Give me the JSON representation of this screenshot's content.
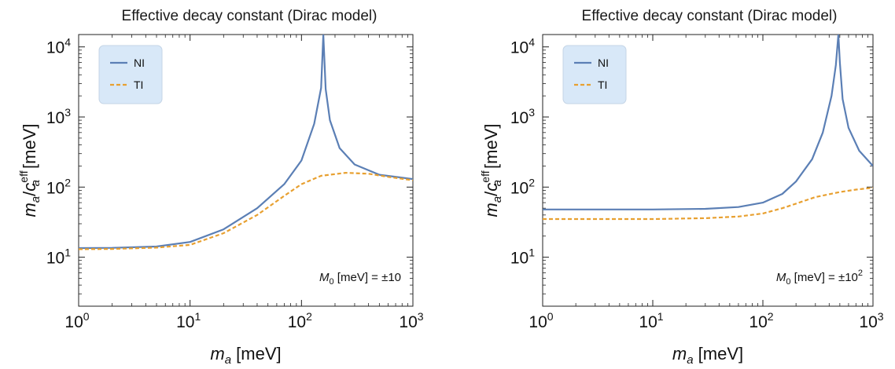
{
  "chart_data": [
    {
      "type": "line",
      "title": "Effective decay constant (Dirac model)",
      "xlabel": "m_a [meV]",
      "ylabel": "m_a/c_a^eff [meV]",
      "xscale": "log",
      "yscale": "log",
      "xlim": [
        1,
        1000
      ],
      "ylim": [
        2,
        15000
      ],
      "xticks": [
        1,
        10,
        100,
        1000
      ],
      "xtick_labels": [
        {
          "base": "10",
          "exp": "0"
        },
        {
          "base": "10",
          "exp": "1"
        },
        {
          "base": "10",
          "exp": "2"
        },
        {
          "base": "10",
          "exp": "3"
        }
      ],
      "yticks": [
        10,
        100,
        1000,
        10000
      ],
      "ytick_labels": [
        {
          "base": "10",
          "exp": "1"
        },
        {
          "base": "10",
          "exp": "2"
        },
        {
          "base": "10",
          "exp": "3"
        },
        {
          "base": "10",
          "exp": "4"
        }
      ],
      "annotation": {
        "prefix": "M",
        "sub": "0",
        "text": " [meV] = ±10",
        "sup": ""
      },
      "legend": {
        "placement": "top-left",
        "background": "#d8e8f8"
      },
      "series": [
        {
          "name": "NI",
          "color": "#5b7fb5",
          "style": "solid",
          "x": [
            1,
            2,
            5,
            10,
            20,
            40,
            70,
            100,
            130,
            150,
            157,
            165,
            180,
            220,
            300,
            500,
            1000
          ],
          "y": [
            13.5,
            13.6,
            14.2,
            16.5,
            25,
            50,
            110,
            240,
            800,
            2600,
            15000,
            2500,
            900,
            360,
            210,
            150,
            130
          ]
        },
        {
          "name": "TI",
          "color": "#e8a030",
          "style": "dashed",
          "x": [
            1,
            2,
            5,
            10,
            20,
            40,
            70,
            100,
            150,
            250,
            400,
            600,
            1000
          ],
          "y": [
            13,
            13.1,
            13.7,
            15,
            22,
            40,
            75,
            110,
            145,
            160,
            155,
            140,
            125
          ]
        }
      ]
    },
    {
      "type": "line",
      "title": "Effective decay constant (Dirac model)",
      "xlabel": "m_a [meV]",
      "ylabel": "m_a/c_a^eff [meV]",
      "xscale": "log",
      "yscale": "log",
      "xlim": [
        1,
        1000
      ],
      "ylim": [
        2,
        15000
      ],
      "xticks": [
        1,
        10,
        100,
        1000
      ],
      "xtick_labels": [
        {
          "base": "10",
          "exp": "0"
        },
        {
          "base": "10",
          "exp": "1"
        },
        {
          "base": "10",
          "exp": "2"
        },
        {
          "base": "10",
          "exp": "3"
        }
      ],
      "yticks": [
        10,
        100,
        1000,
        10000
      ],
      "ytick_labels": [
        {
          "base": "10",
          "exp": "1"
        },
        {
          "base": "10",
          "exp": "2"
        },
        {
          "base": "10",
          "exp": "3"
        },
        {
          "base": "10",
          "exp": "4"
        }
      ],
      "annotation": {
        "prefix": "M",
        "sub": "0",
        "text": " [meV] = ±10",
        "sup": "2"
      },
      "legend": {
        "placement": "top-left",
        "background": "#d8e8f8"
      },
      "series": [
        {
          "name": "NI",
          "color": "#5b7fb5",
          "style": "solid",
          "x": [
            1,
            10,
            30,
            60,
            100,
            150,
            200,
            280,
            350,
            420,
            460,
            485,
            500,
            530,
            600,
            750,
            1000
          ],
          "y": [
            48,
            48,
            49,
            52,
            60,
            80,
            120,
            250,
            600,
            2000,
            5500,
            15000,
            6000,
            1800,
            700,
            330,
            200
          ]
        },
        {
          "name": "TI",
          "color": "#e8a030",
          "style": "dashed",
          "x": [
            1,
            10,
            30,
            60,
            100,
            150,
            200,
            300,
            500,
            700,
            1000
          ],
          "y": [
            35,
            35,
            36,
            38,
            42,
            50,
            58,
            72,
            85,
            92,
            98
          ]
        }
      ]
    }
  ]
}
